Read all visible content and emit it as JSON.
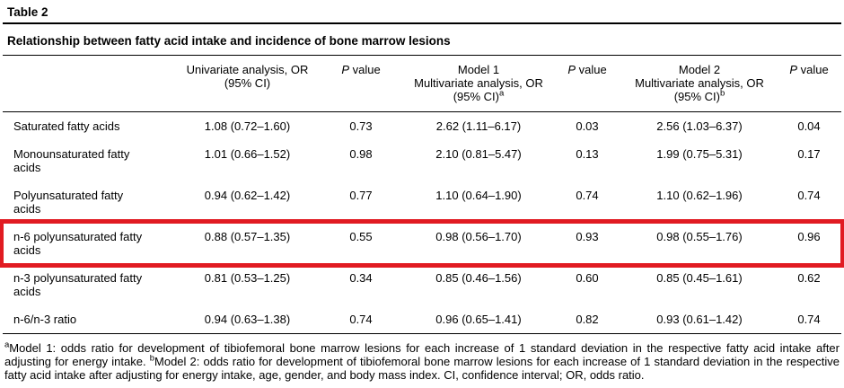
{
  "page": {
    "background": "#ffffff"
  },
  "highlight_color": "#e11b22",
  "table": {
    "label": "Table 2",
    "caption": "Relationship between fatty acid intake and incidence of bone marrow lesions",
    "headers": {
      "row_label": "",
      "univariate": {
        "line1": "Univariate analysis, OR",
        "line2": "(95% CI)"
      },
      "p_value": {
        "italic": "P",
        "rest": " value"
      },
      "model1": {
        "line1": "Model 1",
        "line2": "Multivariate analysis, OR",
        "line3": "(95% CI)",
        "sup": "a"
      },
      "model2": {
        "line1": "Model 2",
        "line2": "Multivariate analysis, OR",
        "line3": "(95% CI)",
        "sup": "b"
      }
    },
    "rows": [
      {
        "label": "Saturated fatty acids",
        "univariate_or": "1.08 (0.72–1.60)",
        "p1": "0.73",
        "model1_or": "2.62 (1.11–6.17)",
        "p2": "0.03",
        "model2_or": "2.56 (1.03–6.37)",
        "p3": "0.04",
        "highlighted": false
      },
      {
        "label": "Monounsaturated fatty acids",
        "univariate_or": "1.01 (0.66–1.52)",
        "p1": "0.98",
        "model1_or": "2.10 (0.81–5.47)",
        "p2": "0.13",
        "model2_or": "1.99 (0.75–5.31)",
        "p3": "0.17",
        "highlighted": false
      },
      {
        "label": "Polyunsaturated fatty acids",
        "univariate_or": "0.94 (0.62–1.42)",
        "p1": "0.77",
        "model1_or": "1.10 (0.64–1.90)",
        "p2": "0.74",
        "model2_or": "1.10 (0.62–1.96)",
        "p3": "0.74",
        "highlighted": false
      },
      {
        "label": "n-6 polyunsaturated fatty acids",
        "univariate_or": "0.88 (0.57–1.35)",
        "p1": "0.55",
        "model1_or": "0.98 (0.56–1.70)",
        "p2": "0.93",
        "model2_or": "0.98 (0.55–1.76)",
        "p3": "0.96",
        "highlighted": true
      },
      {
        "label": "n-3 polyunsaturated fatty acids",
        "univariate_or": "0.81 (0.53–1.25)",
        "p1": "0.34",
        "model1_or": "0.85 (0.46–1.56)",
        "p2": "0.60",
        "model2_or": "0.85 (0.45–1.61)",
        "p3": "0.62",
        "highlighted": false
      },
      {
        "label": "n-6/n-3 ratio",
        "univariate_or": "0.94 (0.63–1.38)",
        "p1": "0.74",
        "model1_or": "0.96 (0.65–1.41)",
        "p2": "0.82",
        "model2_or": "0.93 (0.61–1.42)",
        "p3": "0.74",
        "highlighted": false
      }
    ]
  },
  "footnote": {
    "sup_a": "a",
    "text_a": "Model 1: odds ratio for development of tibiofemoral bone marrow lesions for each increase of 1 standard deviation in the respective fatty acid intake after adjusting for energy intake. ",
    "sup_b": "b",
    "text_b": "Model 2: odds ratio for development of tibiofemoral bone marrow lesions for each increase of 1 standard deviation in the respective fatty acid intake after adjusting for energy intake, age, gender, and body mass index. CI, confidence interval; OR, odds ratio."
  }
}
